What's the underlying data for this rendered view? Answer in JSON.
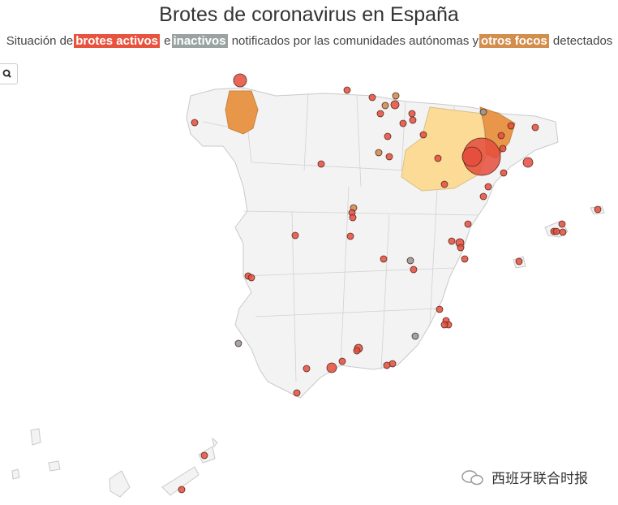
{
  "header": {
    "title": "Brotes de coronavirus en España",
    "subtitle": [
      "Situación de",
      "brotes activos",
      "e",
      "inactivos",
      "notificados por las comunidades autónomas y",
      "otros focos",
      "detectados"
    ]
  },
  "watermark": "西班牙联合时报"
}
